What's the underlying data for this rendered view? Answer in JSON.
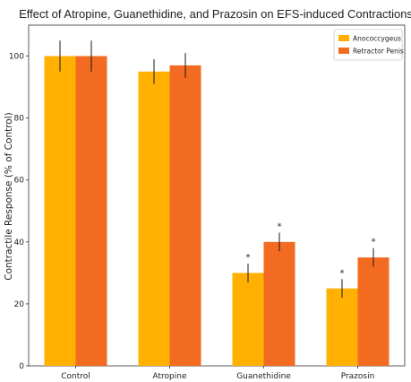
{
  "chart_data": {
    "type": "bar",
    "title": "Effect of Atropine, Guanethidine, and Prazosin on EFS-induced Contractions",
    "xlabel": "",
    "ylabel": "Contractile Response (% of Control)",
    "categories": [
      "Control",
      "Atropine",
      "Guanethidine",
      "Prazosin"
    ],
    "ylim": [
      0,
      110
    ],
    "yticks": [
      0,
      20,
      40,
      60,
      80,
      100
    ],
    "grid": false,
    "legend_position": "top-right",
    "significance_marker": "*",
    "series": [
      {
        "name": "Anococcygeus",
        "color": "#FFB000",
        "values": [
          100,
          95,
          30,
          25
        ],
        "errors": [
          5,
          4,
          3,
          3
        ],
        "significant": [
          false,
          false,
          true,
          true
        ]
      },
      {
        "name": "Retractor Penis",
        "color": "#F26B21",
        "values": [
          100,
          97,
          40,
          35
        ],
        "errors": [
          5,
          4,
          3,
          3
        ],
        "significant": [
          false,
          false,
          true,
          true
        ]
      }
    ]
  }
}
